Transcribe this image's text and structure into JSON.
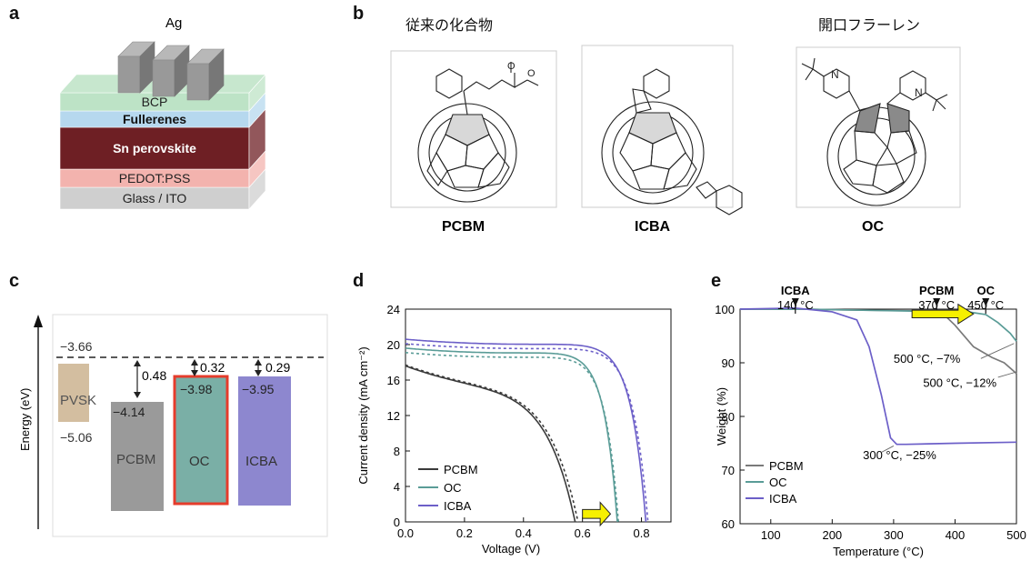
{
  "panel_labels": {
    "a": "a",
    "b": "b",
    "c": "c",
    "d": "d",
    "e": "e"
  },
  "panel_a": {
    "electrode": "Ag",
    "layers": [
      {
        "name": "BCP",
        "color": "#bde3c6",
        "bold": false,
        "text": "#222"
      },
      {
        "name": "Fullerenes",
        "color": "#b6d8ee",
        "bold": true,
        "text": "#111"
      },
      {
        "name": "Sn perovskite",
        "color": "#6e1f24",
        "bold": true,
        "text": "#ffffff"
      },
      {
        "name": "PEDOT:PSS",
        "color": "#f3b3ae",
        "bold": false,
        "text": "#222"
      },
      {
        "name": "Glass / ITO",
        "color": "#cfcfcf",
        "bold": false,
        "text": "#222"
      }
    ]
  },
  "panel_b": {
    "heading_left": "従来の化合物",
    "heading_right": "開口フラーレン",
    "compounds": [
      "PCBM",
      "ICBA",
      "OC"
    ],
    "atom_label": "N"
  },
  "panel_c": {
    "ylabel": "Energy (eV)",
    "vacuum_level": "−3.66",
    "materials": [
      {
        "name": "PVSK",
        "lumo": "−3.66",
        "homo": "−5.06",
        "color": "#d3bea0"
      },
      {
        "name": "PCBM",
        "lumo": "−4.14",
        "offset": "0.48",
        "color": "#9a9a9a"
      },
      {
        "name": "OC",
        "lumo": "−3.98",
        "offset": "0.32",
        "color": "#7aafa6",
        "border": "#e53c2c"
      },
      {
        "name": "ICBA",
        "lumo": "−3.95",
        "offset": "0.29",
        "color": "#8d87cf"
      }
    ]
  },
  "chart_data": [
    {
      "type": "line",
      "panel": "d",
      "xlabel": "Voltage (V)",
      "ylabel": "Current density (mA cm⁻²)",
      "xlim": [
        0,
        0.9
      ],
      "ylim": [
        0,
        24
      ],
      "xticks": [
        "0.0",
        "0.2",
        "0.4",
        "0.6",
        "0.8"
      ],
      "yticks": [
        "0",
        "4",
        "8",
        "12",
        "16",
        "20",
        "24"
      ],
      "legend_position": "bottom-left",
      "series": [
        {
          "name": "PCBM",
          "color": "#3a3a3a",
          "voc": 0.575,
          "jsc": 17.6,
          "ff": 0.55,
          "dashed_voc": 0.585,
          "dashed_jsc": 17.7
        },
        {
          "name": "OC",
          "color": "#5a9c97",
          "voc": 0.718,
          "jsc": 19.6,
          "ff": 0.76,
          "dashed_voc": 0.722,
          "dashed_jsc": 19.1
        },
        {
          "name": "ICBA",
          "color": "#6c5fc8",
          "voc": 0.815,
          "jsc": 20.6,
          "ff": 0.75,
          "dashed_voc": 0.822,
          "dashed_jsc": 20.1
        }
      ]
    },
    {
      "type": "line",
      "panel": "e",
      "xlabel": "Temperature (°C)",
      "ylabel": "Weight (%)",
      "xlim": [
        50,
        500
      ],
      "ylim": [
        60,
        100
      ],
      "xticks": [
        "100",
        "200",
        "300",
        "400",
        "500"
      ],
      "yticks": [
        "60",
        "70",
        "80",
        "90",
        "100"
      ],
      "legend_position": "bottom-left",
      "series": [
        {
          "name": "PCBM",
          "color": "#7a7a7a",
          "x": [
            50,
            150,
            250,
            350,
            380,
            400,
            430,
            460,
            480,
            500
          ],
          "y": [
            100,
            100,
            99.8,
            99.7,
            99.2,
            97,
            93,
            91,
            90,
            88
          ]
        },
        {
          "name": "OC",
          "color": "#5a9c97",
          "x": [
            50,
            150,
            250,
            350,
            420,
            450,
            470,
            490,
            500
          ],
          "y": [
            100,
            100,
            99.8,
            99.6,
            99.5,
            99,
            97.5,
            95.5,
            94
          ]
        },
        {
          "name": "ICBA",
          "color": "#6c5fc8",
          "x": [
            50,
            140,
            200,
            240,
            260,
            280,
            295,
            305,
            320,
            400,
            500
          ],
          "y": [
            100,
            100.2,
            99.5,
            98,
            93,
            84,
            76,
            74.8,
            74.8,
            75,
            75.2
          ]
        }
      ],
      "onset_labels": [
        {
          "name": "ICBA",
          "temp": "140 °C",
          "x": 140
        },
        {
          "name": "PCBM",
          "temp": "370 °C",
          "x": 370
        },
        {
          "name": "OC",
          "temp": "450 °C",
          "x": 450
        }
      ],
      "annotations": [
        "500 °C, −7%",
        "500 °C, −12%",
        "300 °C, −25%"
      ]
    }
  ]
}
